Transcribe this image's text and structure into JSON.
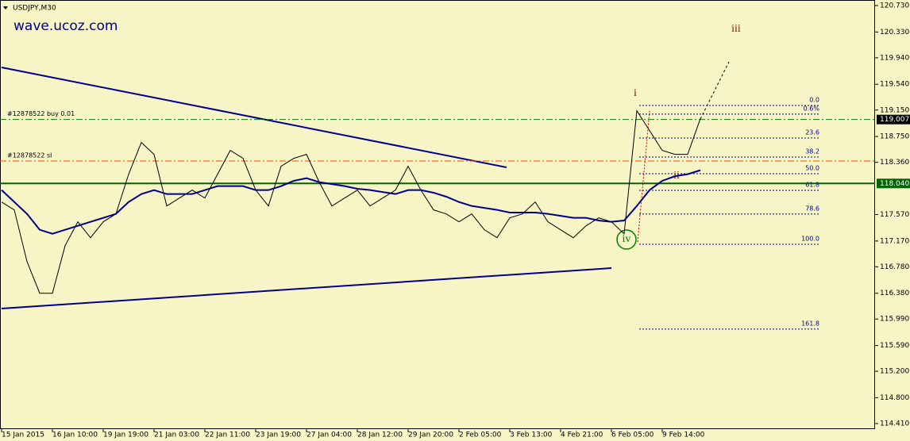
{
  "chart_data": {
    "type": "line",
    "title": "USDJPY,M30",
    "watermark": "wave.ucoz.com",
    "categories": [
      "15 Jan 2015",
      null,
      null,
      null,
      "16 Jan 10:00",
      null,
      null,
      null,
      "19 Jan 19:00",
      null,
      null,
      null,
      "21 Jan 03:00",
      null,
      null,
      null,
      "22 Jan 11:00",
      null,
      null,
      null,
      "23 Jan 19:00",
      null,
      null,
      null,
      "27 Jan 04:00",
      null,
      null,
      null,
      "28 Jan 12:00",
      null,
      null,
      null,
      "29 Jan 20:00",
      null,
      null,
      null,
      "2 Feb 05:00",
      null,
      null,
      null,
      "3 Feb 13:00",
      null,
      null,
      null,
      "4 Feb 21:00",
      null,
      null,
      null,
      "6 Feb 05:00",
      null,
      null,
      null,
      "9 Feb 14:00",
      null,
      null,
      null
    ],
    "series": [
      {
        "color": "#000000",
        "values": [
          117.76,
          117.64,
          116.86,
          116.38,
          116.38,
          117.1,
          117.46,
          117.22,
          117.46,
          117.58,
          118.18,
          118.66,
          118.48,
          117.7,
          117.82,
          117.94,
          117.82,
          118.18,
          118.54,
          118.42,
          117.94,
          117.7,
          118.3,
          118.42,
          118.48,
          118.06,
          117.7,
          117.82,
          117.94,
          117.7,
          117.82,
          117.94,
          118.3,
          117.94,
          117.64,
          117.58,
          117.46,
          117.58,
          117.34,
          117.22,
          117.52,
          117.58,
          117.76,
          117.46,
          117.34,
          117.22,
          117.4,
          117.52,
          117.46,
          117.28,
          119.14,
          118.84,
          118.54,
          118.48,
          118.48,
          119.02
        ]
      },
      {
        "color": "#00008b",
        "values": [
          117.94,
          117.76,
          117.58,
          117.34,
          117.28,
          117.34,
          117.4,
          117.46,
          117.52,
          117.58,
          117.76,
          117.88,
          117.94,
          117.88,
          117.88,
          117.88,
          117.94,
          118.0,
          118.0,
          118.0,
          117.94,
          117.94,
          118.0,
          118.08,
          118.12,
          118.06,
          118.03,
          118.0,
          117.96,
          117.94,
          117.91,
          117.88,
          117.94,
          117.94,
          117.9,
          117.84,
          117.76,
          117.7,
          117.67,
          117.64,
          117.6,
          117.6,
          117.6,
          117.58,
          117.55,
          117.52,
          117.52,
          117.48,
          117.46,
          117.48,
          117.7,
          117.94,
          118.08,
          118.15,
          118.18,
          118.24
        ]
      }
    ],
    "ylim": [
      114.326,
      120.814
    ],
    "yticks": [
      {
        "value": 120.73,
        "label": "120.730"
      },
      {
        "value": 120.33,
        "label": "120.330"
      },
      {
        "value": 119.94,
        "label": "119.940"
      },
      {
        "value": 119.54,
        "label": "119.540"
      },
      {
        "value": 119.15,
        "label": "119.150"
      },
      {
        "value": 118.75,
        "label": "118.750"
      },
      {
        "value": 118.36,
        "label": "118.360"
      },
      {
        "value": 117.57,
        "label": "117.570"
      },
      {
        "value": 117.17,
        "label": "117.170"
      },
      {
        "value": 116.78,
        "label": "116.780"
      },
      {
        "value": 116.38,
        "label": "116.380"
      },
      {
        "value": 115.99,
        "label": "115.990"
      },
      {
        "value": 115.59,
        "label": "115.590"
      },
      {
        "value": 115.2,
        "label": "115.200"
      },
      {
        "value": 114.8,
        "label": "114.800"
      },
      {
        "value": 114.41,
        "label": "114.410"
      }
    ],
    "levels": [
      {
        "label": "#12878522 buy 0.01",
        "value": 119.007,
        "color": "#008000",
        "style": "dashdot",
        "axis_label": true,
        "badge_color": "#000000"
      },
      {
        "label": "#12878522 sl",
        "value": 118.38,
        "color": "#ff4500",
        "style": "dashdot",
        "axis_label": false
      },
      {
        "value": 118.04,
        "value_label": "118.040",
        "color": "#006400",
        "style": "solid",
        "axis_label": true,
        "badge_color": "#006400"
      }
    ],
    "fibonacci": {
      "color": "#00008b",
      "levels": [
        {
          "label": "0.0",
          "value": 119.219
        },
        {
          "label": "0.6%",
          "value": 119.088
        },
        {
          "label": "23.6",
          "value": 118.728
        },
        {
          "label": "38.2",
          "value": 118.44
        },
        {
          "label": "50.0",
          "value": 118.188
        },
        {
          "label": "61.8",
          "value": 117.936
        },
        {
          "label": "78.6",
          "value": 117.577
        },
        {
          "label": "100.0",
          "value": 117.121
        },
        {
          "label": "161.8",
          "value": 115.838
        }
      ]
    },
    "waves": [
      "i",
      "ii",
      "iii",
      "iv"
    ]
  }
}
